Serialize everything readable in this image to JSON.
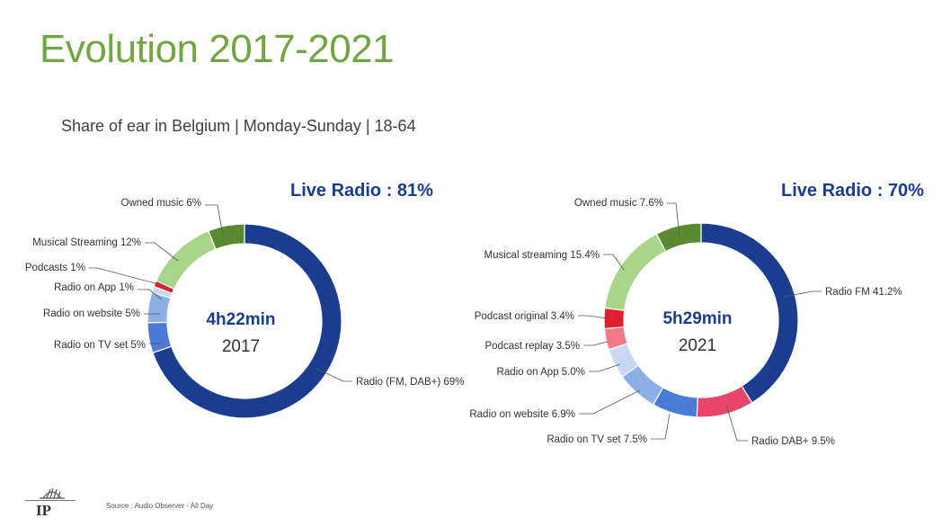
{
  "header": {
    "title": "Evolution 2017-2021",
    "subtitle": "Share of ear in Belgium | Monday-Sunday | 18-64"
  },
  "footer": {
    "logo_text": "IP",
    "source": "Source : Audio Observer - All Day"
  },
  "chart_data": [
    {
      "type": "pie",
      "variant": "donut",
      "title": "Live Radio : 81%",
      "center_value": "4h22min",
      "center_label": "2017",
      "slices": [
        {
          "label": "Radio (FM, DAB+) 69%",
          "value": 69,
          "color": "#1b3d8f"
        },
        {
          "label": "Radio on TV set 5%",
          "value": 5,
          "color": "#4a7bd9"
        },
        {
          "label": "Radio on website 5%",
          "value": 5,
          "color": "#8eaee6"
        },
        {
          "label": "Radio on App 1%",
          "value": 1,
          "color": "#c9d8f2"
        },
        {
          "label": "Podcasts 1%",
          "value": 1,
          "color": "#e0202e"
        },
        {
          "label": "Musical Streaming 12%",
          "value": 12,
          "color": "#aad48a"
        },
        {
          "label": "Owned music 6%",
          "value": 6,
          "color": "#5b8a33"
        }
      ]
    },
    {
      "type": "pie",
      "variant": "donut",
      "title": "Live Radio : 70%",
      "center_value": "5h29min",
      "center_label": "2021",
      "slices": [
        {
          "label": "Radio FM 41.2%",
          "value": 41.2,
          "color": "#1b3d8f"
        },
        {
          "label": "Radio DAB+ 9.5%",
          "value": 9.5,
          "color": "#e8456a"
        },
        {
          "label": "Radio on TV set 7.5%",
          "value": 7.5,
          "color": "#4a7bd9"
        },
        {
          "label": "Radio on website 6.9%",
          "value": 6.9,
          "color": "#8eaee6"
        },
        {
          "label": "Radio on App 5.0%",
          "value": 5.0,
          "color": "#c9d8f2"
        },
        {
          "label": "Podcast replay 3.5%",
          "value": 3.5,
          "color": "#f07a86"
        },
        {
          "label": "Podcast original 3.4%",
          "value": 3.4,
          "color": "#e0202e"
        },
        {
          "label": "Musical streaming 15.4%",
          "value": 15.4,
          "color": "#aad48a"
        },
        {
          "label": "Owned music 7.6%",
          "value": 7.6,
          "color": "#5b8a33"
        }
      ]
    }
  ]
}
